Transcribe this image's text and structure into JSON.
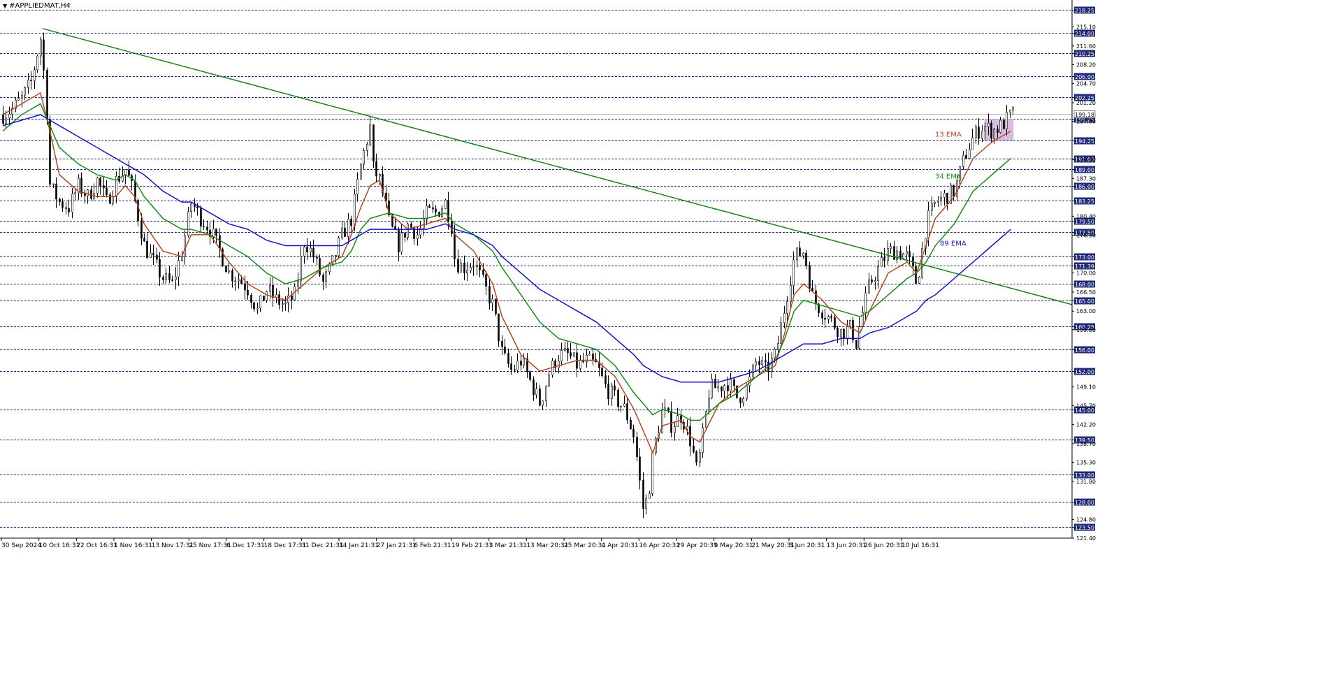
{
  "window": {
    "title": "#APPLIEDMAT,H4"
  },
  "colors": {
    "background": "#ffffff",
    "candle": "#000000",
    "grid": "#1f2a78",
    "ema13": "#b3461f",
    "ema34": "#1a8a1a",
    "ema89": "#1515c8",
    "trendline": "#158215",
    "zone": "#c7a8d8",
    "price_tag_bg": "#1f2a78",
    "price_tag_text": "#ffffff"
  },
  "chart_data": {
    "type": "candlestick",
    "symbol": "#APPLIEDMAT",
    "timeframe": "H4",
    "ylim": [
      121.4,
      219.0
    ],
    "current_price": 199.18,
    "x_tick_labels": [
      "30 Sep 2024",
      "10 Oct 16:31",
      "22 Oct 16:31",
      "1 Nov 16:31",
      "13 Nov 17:31",
      "25 Nov 17:31",
      "6 Dec 17:31",
      "18 Dec 17:31",
      "31 Dec 21:31",
      "14 Jan 21:31",
      "27 Jan 21:31",
      "6 Feb 21:31",
      "19 Feb 21:31",
      "3 Mar 21:31",
      "13 Mar 20:31",
      "25 Mar 20:31",
      "4 Apr 20:31",
      "16 Apr 20:31",
      "29 Apr 20:31",
      "9 May 20:31",
      "21 May 20:31",
      "3 Jun 20:31",
      "13 Jun 20:31",
      "26 Jun 20:31",
      "10 Jul 16:31"
    ],
    "y_tick_labels": [
      "215.10",
      "211.60",
      "208.20",
      "204.70",
      "201.20",
      "197.80",
      "190.80",
      "187.30",
      "180.40",
      "176.90",
      "170.00",
      "166.50",
      "163.00",
      "159.60",
      "149.10",
      "145.70",
      "142.20",
      "138.70",
      "135.30",
      "131.80",
      "124.80",
      "121.40"
    ],
    "horizontal_levels": [
      "218.25",
      "214.00",
      "210.25",
      "206.00",
      "202.25",
      "198.25",
      "194.25",
      "191.00",
      "189.00",
      "186.00",
      "183.25",
      "179.50",
      "177.50",
      "173.00",
      "171.39",
      "168.00",
      "165.00",
      "160.25",
      "156.00",
      "152.00",
      "145.00",
      "139.50",
      "133.00",
      "128.00",
      "123.50"
    ],
    "price_path": [
      [
        0,
        199
      ],
      [
        1,
        200
      ],
      [
        2,
        202
      ],
      [
        3,
        205
      ],
      [
        4,
        213
      ],
      [
        4.6,
        202
      ],
      [
        5,
        186
      ],
      [
        6,
        183
      ],
      [
        7,
        182
      ],
      [
        8,
        186
      ],
      [
        9,
        184
      ],
      [
        10,
        187
      ],
      [
        11,
        183
      ],
      [
        12,
        187
      ],
      [
        13,
        189
      ],
      [
        13.6,
        186
      ],
      [
        14,
        183
      ],
      [
        15,
        175
      ],
      [
        16,
        172
      ],
      [
        17,
        169
      ],
      [
        18,
        168
      ],
      [
        19,
        174
      ],
      [
        20,
        183
      ],
      [
        21,
        180
      ],
      [
        22,
        178
      ],
      [
        23,
        174
      ],
      [
        24,
        170
      ],
      [
        25,
        169
      ],
      [
        26,
        167
      ],
      [
        27,
        163
      ],
      [
        28,
        167
      ],
      [
        29,
        165
      ],
      [
        30,
        164
      ],
      [
        31,
        166
      ],
      [
        32,
        176
      ],
      [
        33,
        173
      ],
      [
        34,
        168
      ],
      [
        35,
        172
      ],
      [
        36,
        177
      ],
      [
        37,
        180
      ],
      [
        38,
        190
      ],
      [
        39,
        197
      ],
      [
        39.3,
        189
      ],
      [
        40,
        187
      ],
      [
        41,
        179
      ],
      [
        42,
        175
      ],
      [
        43,
        179
      ],
      [
        44,
        177
      ],
      [
        45,
        181
      ],
      [
        46,
        181
      ],
      [
        47,
        183
      ],
      [
        47.6,
        179
      ],
      [
        48,
        172
      ],
      [
        49,
        171
      ],
      [
        50,
        172
      ],
      [
        51,
        168
      ],
      [
        52,
        164
      ],
      [
        53,
        155
      ],
      [
        54,
        152
      ],
      [
        55,
        154
      ],
      [
        56,
        150
      ],
      [
        57,
        146
      ],
      [
        58,
        152
      ],
      [
        59,
        155
      ],
      [
        60,
        155
      ],
      [
        61,
        153
      ],
      [
        62,
        154
      ],
      [
        63,
        153
      ],
      [
        64,
        149
      ],
      [
        65,
        147
      ],
      [
        66,
        145
      ],
      [
        67,
        140
      ],
      [
        68,
        126
      ],
      [
        68.6,
        131
      ],
      [
        69,
        137
      ],
      [
        70,
        145
      ],
      [
        71,
        142
      ],
      [
        72,
        144
      ],
      [
        73,
        139
      ],
      [
        73.6,
        134
      ],
      [
        74,
        137
      ],
      [
        75,
        149
      ],
      [
        76,
        149
      ],
      [
        77,
        150
      ],
      [
        78,
        147
      ],
      [
        79,
        149
      ],
      [
        80,
        154
      ],
      [
        81,
        152
      ],
      [
        82,
        155
      ],
      [
        83,
        164
      ],
      [
        84,
        173
      ],
      [
        85,
        174
      ],
      [
        86,
        165
      ],
      [
        87,
        163
      ],
      [
        88,
        161
      ],
      [
        89,
        159
      ],
      [
        90,
        160
      ],
      [
        90.6,
        157
      ],
      [
        91,
        161
      ],
      [
        92,
        168
      ],
      [
        93,
        171
      ],
      [
        94,
        174
      ],
      [
        95,
        174
      ],
      [
        96,
        173
      ],
      [
        97,
        168
      ],
      [
        98,
        179
      ],
      [
        99,
        183
      ],
      [
        100,
        184
      ],
      [
        101,
        185
      ],
      [
        102,
        191
      ],
      [
        103,
        195
      ],
      [
        104,
        197
      ],
      [
        105,
        196
      ],
      [
        106,
        197
      ],
      [
        107,
        199
      ],
      [
        107.3,
        199.18
      ]
    ],
    "series": [
      {
        "name": "13 EMA",
        "values": [
          [
            0,
            199
          ],
          [
            2,
            201
          ],
          [
            4,
            203
          ],
          [
            5,
            196
          ],
          [
            6,
            188
          ],
          [
            8,
            185
          ],
          [
            10,
            184
          ],
          [
            12,
            184
          ],
          [
            13,
            186
          ],
          [
            14,
            184
          ],
          [
            15,
            179
          ],
          [
            17,
            174
          ],
          [
            19,
            173
          ],
          [
            20,
            177
          ],
          [
            22,
            177
          ],
          [
            24,
            172
          ],
          [
            26,
            168
          ],
          [
            28,
            166
          ],
          [
            30,
            165
          ],
          [
            32,
            168
          ],
          [
            34,
            171
          ],
          [
            36,
            173
          ],
          [
            37,
            177
          ],
          [
            38,
            182
          ],
          [
            39,
            186
          ],
          [
            40,
            187
          ],
          [
            41,
            181
          ],
          [
            43,
            178
          ],
          [
            45,
            179
          ],
          [
            47,
            180
          ],
          [
            48,
            177
          ],
          [
            50,
            174
          ],
          [
            52,
            168
          ],
          [
            53,
            162
          ],
          [
            55,
            155
          ],
          [
            57,
            152
          ],
          [
            59,
            153
          ],
          [
            61,
            154
          ],
          [
            63,
            154
          ],
          [
            65,
            151
          ],
          [
            67,
            145
          ],
          [
            68,
            141
          ],
          [
            69,
            137
          ],
          [
            70,
            142
          ],
          [
            72,
            143
          ],
          [
            73,
            140
          ],
          [
            74,
            139
          ],
          [
            76,
            146
          ],
          [
            78,
            149
          ],
          [
            80,
            151
          ],
          [
            82,
            153
          ],
          [
            83,
            159
          ],
          [
            84,
            166
          ],
          [
            85,
            168
          ],
          [
            87,
            165
          ],
          [
            89,
            161
          ],
          [
            91,
            159
          ],
          [
            92,
            163
          ],
          [
            94,
            170
          ],
          [
            96,
            172
          ],
          [
            97,
            170
          ],
          [
            98,
            175
          ],
          [
            99,
            180
          ],
          [
            101,
            184
          ],
          [
            103,
            191
          ],
          [
            105,
            194
          ],
          [
            106,
            195
          ],
          [
            107,
            196
          ]
        ]
      },
      {
        "name": "34 EMA",
        "values": [
          [
            0,
            196
          ],
          [
            2,
            199
          ],
          [
            4,
            201
          ],
          [
            5,
            197
          ],
          [
            6,
            193
          ],
          [
            8,
            190
          ],
          [
            10,
            188
          ],
          [
            12,
            187
          ],
          [
            13,
            188
          ],
          [
            14,
            187
          ],
          [
            15,
            184
          ],
          [
            17,
            180
          ],
          [
            19,
            178
          ],
          [
            20,
            178
          ],
          [
            22,
            177
          ],
          [
            24,
            175
          ],
          [
            26,
            173
          ],
          [
            28,
            170
          ],
          [
            30,
            168
          ],
          [
            32,
            169
          ],
          [
            34,
            171
          ],
          [
            36,
            172
          ],
          [
            37,
            174
          ],
          [
            38,
            178
          ],
          [
            39,
            180
          ],
          [
            41,
            181
          ],
          [
            43,
            180
          ],
          [
            45,
            180
          ],
          [
            47,
            181
          ],
          [
            48,
            179
          ],
          [
            50,
            177
          ],
          [
            52,
            174
          ],
          [
            53,
            171
          ],
          [
            55,
            166
          ],
          [
            57,
            161
          ],
          [
            59,
            158
          ],
          [
            61,
            157
          ],
          [
            63,
            156
          ],
          [
            65,
            153
          ],
          [
            67,
            148
          ],
          [
            68,
            146
          ],
          [
            69,
            144
          ],
          [
            70,
            145
          ],
          [
            72,
            144
          ],
          [
            73,
            143
          ],
          [
            74,
            143
          ],
          [
            76,
            146
          ],
          [
            78,
            148
          ],
          [
            80,
            151
          ],
          [
            82,
            154
          ],
          [
            83,
            158
          ],
          [
            84,
            163
          ],
          [
            85,
            165
          ],
          [
            87,
            164
          ],
          [
            89,
            163
          ],
          [
            91,
            162
          ],
          [
            92,
            163
          ],
          [
            94,
            166
          ],
          [
            96,
            169
          ],
          [
            97,
            170
          ],
          [
            98,
            172
          ],
          [
            99,
            175
          ],
          [
            101,
            179
          ],
          [
            103,
            185
          ],
          [
            105,
            188
          ],
          [
            107,
            191
          ]
        ]
      },
      {
        "name": "89 EMA",
        "values": [
          [
            0,
            197
          ],
          [
            2,
            198
          ],
          [
            4,
            199
          ],
          [
            5,
            198
          ],
          [
            6,
            197
          ],
          [
            8,
            195
          ],
          [
            10,
            193
          ],
          [
            12,
            191
          ],
          [
            14,
            189
          ],
          [
            15,
            188
          ],
          [
            17,
            185
          ],
          [
            19,
            183
          ],
          [
            20,
            183
          ],
          [
            22,
            181
          ],
          [
            24,
            179
          ],
          [
            26,
            178
          ],
          [
            28,
            176
          ],
          [
            30,
            175
          ],
          [
            32,
            175
          ],
          [
            34,
            175
          ],
          [
            36,
            175
          ],
          [
            37,
            176
          ],
          [
            38,
            177
          ],
          [
            39,
            178
          ],
          [
            41,
            178
          ],
          [
            43,
            178
          ],
          [
            45,
            178
          ],
          [
            47,
            179
          ],
          [
            48,
            178
          ],
          [
            50,
            177
          ],
          [
            52,
            175
          ],
          [
            53,
            173
          ],
          [
            55,
            170
          ],
          [
            57,
            167
          ],
          [
            59,
            165
          ],
          [
            61,
            163
          ],
          [
            63,
            161
          ],
          [
            65,
            158
          ],
          [
            67,
            155
          ],
          [
            68,
            153
          ],
          [
            69,
            152
          ],
          [
            70,
            151
          ],
          [
            72,
            150
          ],
          [
            73,
            150
          ],
          [
            74,
            150
          ],
          [
            76,
            150
          ],
          [
            78,
            151
          ],
          [
            80,
            152
          ],
          [
            82,
            154
          ],
          [
            83,
            155
          ],
          [
            84,
            156
          ],
          [
            85,
            157
          ],
          [
            87,
            157
          ],
          [
            89,
            158
          ],
          [
            91,
            158
          ],
          [
            92,
            159
          ],
          [
            94,
            160
          ],
          [
            96,
            162
          ],
          [
            97,
            163
          ],
          [
            98,
            165
          ],
          [
            99,
            166
          ],
          [
            101,
            169
          ],
          [
            103,
            172
          ],
          [
            105,
            175
          ],
          [
            107,
            178
          ]
        ]
      }
    ],
    "trendline": {
      "from": [
        4.2,
        214.8
      ],
      "to": [
        113.5,
        164.2
      ]
    },
    "zone": {
      "x": [
        104.2,
        107.3
      ],
      "y": [
        194.25,
        198.25
      ]
    },
    "legend": [
      {
        "name": "13 EMA",
        "label_price": 195.5
      },
      {
        "name": "34 EMA",
        "label_price": 187.8
      },
      {
        "name": "89 EMA",
        "label_price": 175.5
      }
    ],
    "legend_labels": {
      "ema13": "13 EMA",
      "ema34": "34 EMA",
      "ema89": "89 EMA"
    },
    "grid": true
  }
}
